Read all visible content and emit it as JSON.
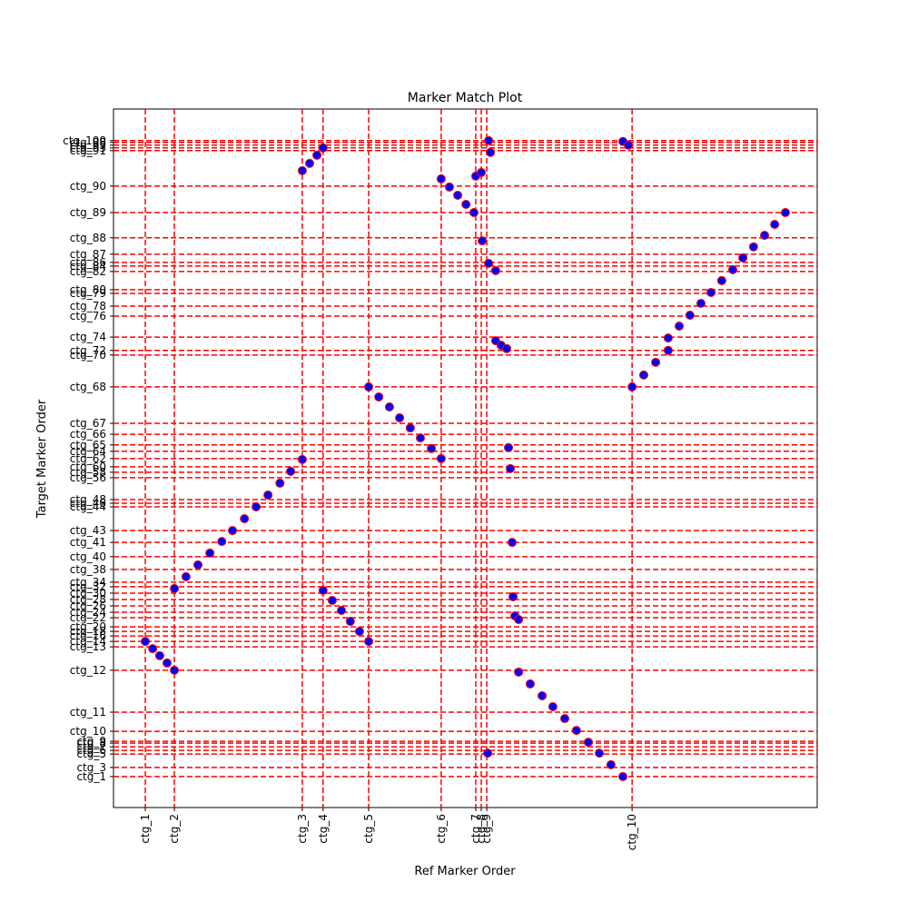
{
  "chart_data": {
    "type": "scatter",
    "title": "Marker Match Plot",
    "x_label": "Ref Marker Order",
    "y_label": "Target Marker Order",
    "color": "#0000ff",
    "edgecolor": "#ff0000",
    "grid": true,
    "grid_color": "#ff0000",
    "xlim": [
      -104,
      2196
    ],
    "ylim": [
      -100,
      2200
    ],
    "xticks": [
      {
        "value": 0,
        "label": "ctg_1"
      },
      {
        "value": 95,
        "label": "ctg_2"
      },
      {
        "value": 513,
        "label": "ctg_3"
      },
      {
        "value": 581,
        "label": "ctg_4"
      },
      {
        "value": 730,
        "label": "ctg_5"
      },
      {
        "value": 967,
        "label": "ctg_6"
      },
      {
        "value": 1080,
        "label": "ctg_7"
      },
      {
        "value": 1098,
        "label": "ctg_8"
      },
      {
        "value": 1116,
        "label": "ctg_9"
      },
      {
        "value": 1591,
        "label": "ctg_10"
      }
    ],
    "yticks": [
      {
        "value": 2,
        "label": "ctg_1"
      },
      {
        "value": 32,
        "label": "ctg_3"
      },
      {
        "value": 76,
        "label": "ctg_5"
      },
      {
        "value": 88,
        "label": "ctg_6"
      },
      {
        "value": 100,
        "label": "ctg_7"
      },
      {
        "value": 112,
        "label": "ctg_8"
      },
      {
        "value": 118,
        "label": "ctg_9"
      },
      {
        "value": 151,
        "label": "ctg_10"
      },
      {
        "value": 214,
        "label": "ctg_11"
      },
      {
        "value": 352,
        "label": "ctg_12"
      },
      {
        "value": 429,
        "label": "ctg_13"
      },
      {
        "value": 447,
        "label": "ctg_14"
      },
      {
        "value": 465,
        "label": "ctg_16"
      },
      {
        "value": 480,
        "label": "ctg_18"
      },
      {
        "value": 495,
        "label": "ctg_20"
      },
      {
        "value": 525,
        "label": "ctg_22"
      },
      {
        "value": 543,
        "label": "ctg_24"
      },
      {
        "value": 564,
        "label": "ctg_26"
      },
      {
        "value": 585,
        "label": "ctg_28"
      },
      {
        "value": 606,
        "label": "ctg_30"
      },
      {
        "value": 627,
        "label": "ctg_32"
      },
      {
        "value": 642,
        "label": "ctg_34"
      },
      {
        "value": 684,
        "label": "ctg_38"
      },
      {
        "value": 726,
        "label": "ctg_40"
      },
      {
        "value": 773,
        "label": "ctg_41"
      },
      {
        "value": 812,
        "label": "ctg_43"
      },
      {
        "value": 890,
        "label": "ctg_44"
      },
      {
        "value": 902,
        "label": "ctg_46"
      },
      {
        "value": 914,
        "label": "ctg_48"
      },
      {
        "value": 986,
        "label": "ctg_56"
      },
      {
        "value": 1004,
        "label": "ctg_58"
      },
      {
        "value": 1022,
        "label": "ctg_60"
      },
      {
        "value": 1049,
        "label": "ctg_62"
      },
      {
        "value": 1073,
        "label": "ctg_64"
      },
      {
        "value": 1094,
        "label": "ctg_65"
      },
      {
        "value": 1129,
        "label": "ctg_66"
      },
      {
        "value": 1165,
        "label": "ctg_67"
      },
      {
        "value": 1285,
        "label": "ctg_68"
      },
      {
        "value": 1390,
        "label": "ctg_70"
      },
      {
        "value": 1405,
        "label": "ctg_72"
      },
      {
        "value": 1449,
        "label": "ctg_74"
      },
      {
        "value": 1518,
        "label": "ctg_76"
      },
      {
        "value": 1551,
        "label": "ctg_78"
      },
      {
        "value": 1593,
        "label": "ctg_79"
      },
      {
        "value": 1605,
        "label": "ctg_80"
      },
      {
        "value": 1665,
        "label": "ctg_82"
      },
      {
        "value": 1683,
        "label": "ctg_84"
      },
      {
        "value": 1695,
        "label": "ctg_86"
      },
      {
        "value": 1722,
        "label": "ctg_87"
      },
      {
        "value": 1776,
        "label": "ctg_88"
      },
      {
        "value": 1859,
        "label": "ctg_89"
      },
      {
        "value": 1946,
        "label": "ctg_90"
      },
      {
        "value": 2063,
        "label": "ctg_91"
      },
      {
        "value": 2072,
        "label": "ctg_93"
      },
      {
        "value": 2081,
        "label": "ctg_95"
      },
      {
        "value": 2090,
        "label": "ctg_98"
      },
      {
        "value": 2096,
        "label": "ctg_100"
      }
    ],
    "x": [
      0,
      24,
      47,
      71,
      95,
      95,
      133,
      172,
      211,
      250,
      285,
      324,
      362,
      401,
      440,
      475,
      513,
      513,
      537,
      561,
      581,
      581,
      611,
      641,
      670,
      700,
      730,
      730,
      763,
      798,
      831,
      866,
      899,
      935,
      967,
      967,
      994,
      1021,
      1048,
      1074,
      1080,
      1098,
      1101,
      1122,
      1128,
      1122,
      1145,
      1145,
      1163,
      1181,
      1187,
      1193,
      1199,
      1202,
      1208,
      1220,
      1119,
      1220,
      1258,
      1297,
      1332,
      1371,
      1409,
      1448,
      1484,
      1522,
      1561,
      1561,
      1579,
      1591,
      1629,
      1668,
      1709,
      1709,
      1745,
      1780,
      1816,
      1849,
      1884,
      1920,
      1953,
      1988,
      2024,
      2057,
      2092
    ],
    "values": [
      447,
      423,
      400,
      376,
      352,
      621,
      660,
      699,
      738,
      776,
      812,
      851,
      890,
      929,
      968,
      1007,
      1046,
      1997,
      2021,
      2048,
      2072,
      615,
      582,
      549,
      513,
      480,
      447,
      1285,
      1252,
      1219,
      1183,
      1150,
      1117,
      1082,
      1049,
      1970,
      1943,
      1916,
      1886,
      1859,
      1979,
      1991,
      1766,
      2096,
      2057,
      1692,
      1668,
      1437,
      1422,
      1411,
      1085,
      1016,
      773,
      594,
      531,
      519,
      79,
      346,
      307,
      268,
      232,
      193,
      154,
      115,
      79,
      41,
      2,
      2093,
      2081,
      1285,
      1324,
      1366,
      1405,
      1446,
      1485,
      1521,
      1560,
      1596,
      1635,
      1671,
      1710,
      1746,
      1784,
      1820,
      1859
    ]
  }
}
